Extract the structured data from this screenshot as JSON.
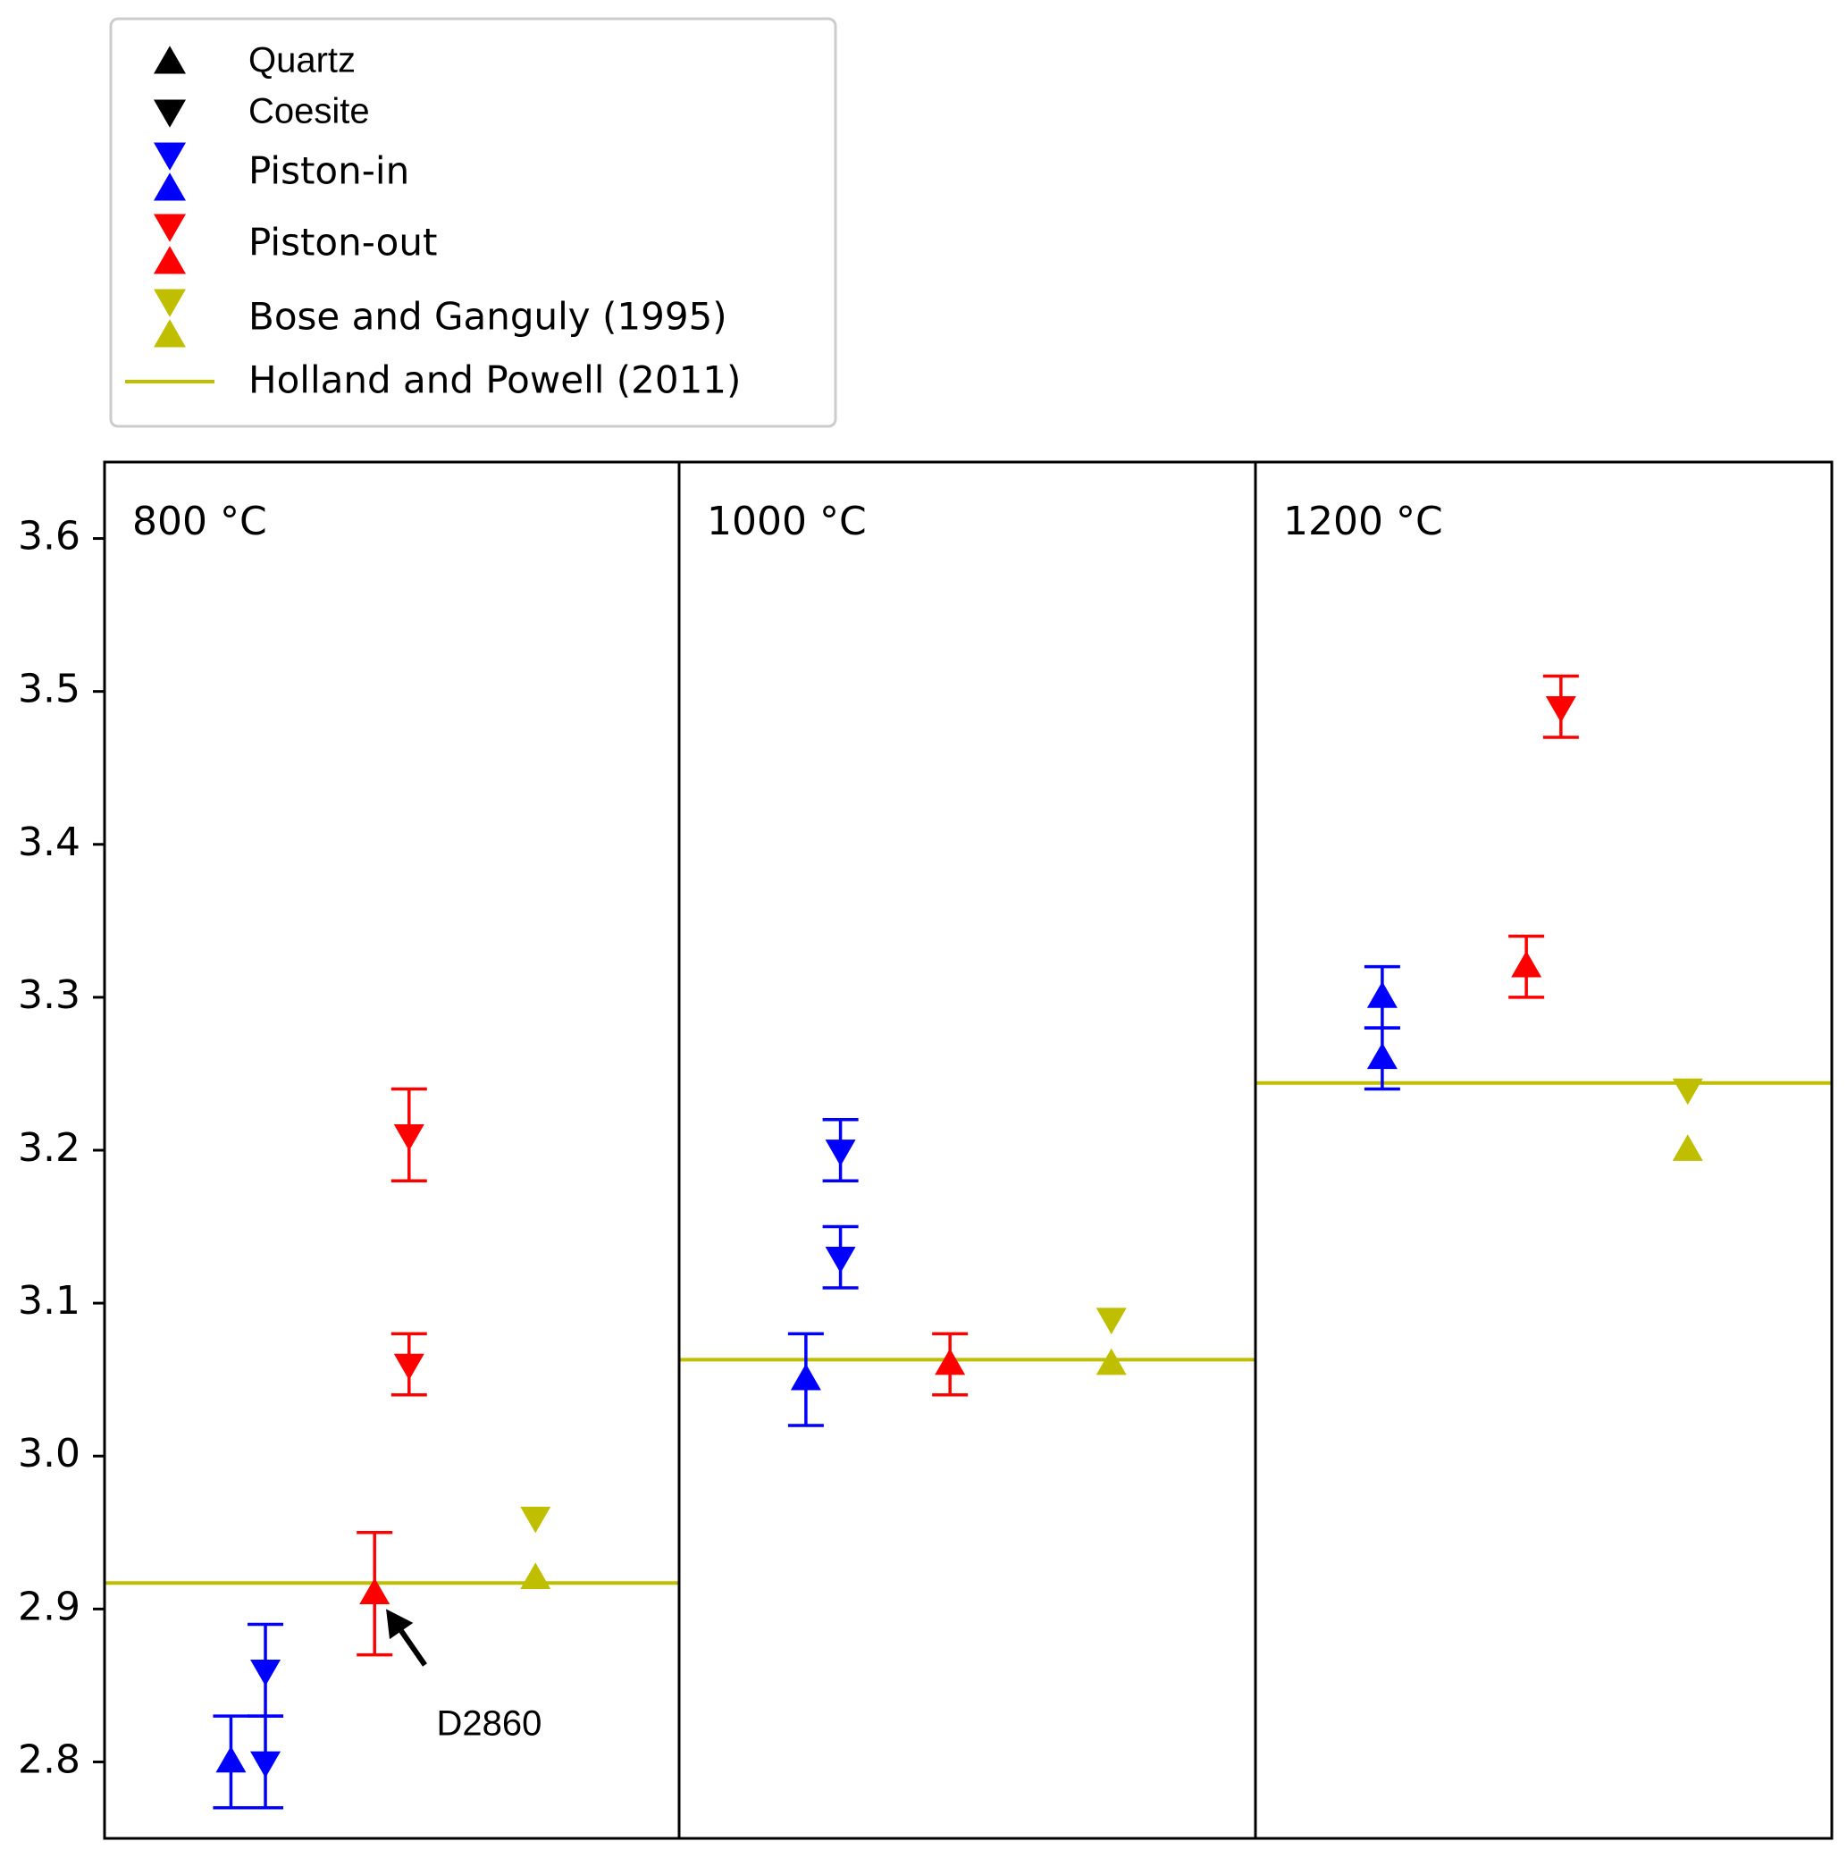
{
  "chart_data": {
    "type": "scatter",
    "ylim": [
      2.75,
      3.65
    ],
    "y_ticks": [
      "2.8",
      "2.9",
      "3.0",
      "3.1",
      "3.2",
      "3.3",
      "3.4",
      "3.5",
      "3.6"
    ],
    "y_tick_values": [
      2.8,
      2.9,
      3.0,
      3.1,
      3.2,
      3.3,
      3.4,
      3.5,
      3.6
    ],
    "grid": false,
    "legend_position": "top-left, above plot",
    "colors": {
      "piston_in": "#0000ff",
      "piston_out": "#ff0000",
      "bose": "#bfbf00",
      "quartz_coesite": "#000000",
      "frame": "#000000"
    },
    "legend": [
      {
        "label": "Quartz",
        "markers": [
          "up"
        ],
        "color": "#000000"
      },
      {
        "label": "Coesite",
        "markers": [
          "down"
        ],
        "color": "#000000"
      },
      {
        "label": "Piston-in",
        "markers": [
          "down",
          "up"
        ],
        "color": "#0000ff"
      },
      {
        "label": "Piston-out",
        "markers": [
          "down",
          "up"
        ],
        "color": "#ff0000"
      },
      {
        "label": "Bose and Ganguly (1995)",
        "markers": [
          "down",
          "up"
        ],
        "color": "#bfbf00"
      },
      {
        "label": "Holland and Powell (2011)",
        "markers": [
          "line"
        ],
        "color": "#bfbf00"
      }
    ],
    "panels": [
      {
        "label": "800 °C",
        "hp_line": 2.917,
        "points": [
          {
            "series": "Piston-in",
            "marker": "up",
            "x": 0.22,
            "y": 2.8,
            "err": 0.03
          },
          {
            "series": "Piston-in",
            "marker": "down",
            "x": 0.28,
            "y": 2.86,
            "err": 0.03
          },
          {
            "series": "Piston-in",
            "marker": "down",
            "x": 0.28,
            "y": 2.8,
            "err": 0.03
          },
          {
            "series": "Piston-out",
            "marker": "up",
            "x": 0.47,
            "y": 2.91,
            "err": 0.04
          },
          {
            "series": "Piston-out",
            "marker": "down",
            "x": 0.53,
            "y": 3.21,
            "err": 0.03
          },
          {
            "series": "Piston-out",
            "marker": "down",
            "x": 0.53,
            "y": 3.06,
            "err": 0.02
          },
          {
            "series": "Bose and Ganguly (1995)",
            "marker": "down",
            "x": 0.75,
            "y": 2.96
          },
          {
            "series": "Bose and Ganguly (1995)",
            "marker": "up",
            "x": 0.75,
            "y": 2.92
          }
        ],
        "annotation": {
          "text": "D2860",
          "x": 0.57,
          "y": 2.84,
          "target_x": 0.49,
          "target_y": 2.9
        }
      },
      {
        "label": "1000 °C",
        "hp_line": 3.063,
        "points": [
          {
            "series": "Piston-in",
            "marker": "up",
            "x": 0.22,
            "y": 3.05,
            "err": 0.03
          },
          {
            "series": "Piston-in",
            "marker": "down",
            "x": 0.28,
            "y": 3.2,
            "err": 0.02
          },
          {
            "series": "Piston-in",
            "marker": "down",
            "x": 0.28,
            "y": 3.13,
            "err": 0.02
          },
          {
            "series": "Piston-out",
            "marker": "up",
            "x": 0.47,
            "y": 3.06,
            "err": 0.02
          },
          {
            "series": "Bose and Ganguly (1995)",
            "marker": "down",
            "x": 0.75,
            "y": 3.09
          },
          {
            "series": "Bose and Ganguly (1995)",
            "marker": "up",
            "x": 0.75,
            "y": 3.06
          }
        ]
      },
      {
        "label": "1200 °C",
        "hp_line": 3.244,
        "points": [
          {
            "series": "Piston-in",
            "marker": "up",
            "x": 0.22,
            "y": 3.3,
            "err": 0.02
          },
          {
            "series": "Piston-in",
            "marker": "up",
            "x": 0.22,
            "y": 3.26,
            "err": 0.02
          },
          {
            "series": "Piston-out",
            "marker": "up",
            "x": 0.47,
            "y": 3.32,
            "err": 0.02
          },
          {
            "series": "Piston-out",
            "marker": "down",
            "x": 0.53,
            "y": 3.49,
            "err": 0.02
          },
          {
            "series": "Bose and Ganguly (1995)",
            "marker": "down",
            "x": 0.75,
            "y": 3.24
          },
          {
            "series": "Bose and Ganguly (1995)",
            "marker": "up",
            "x": 0.75,
            "y": 3.2
          }
        ]
      }
    ]
  }
}
